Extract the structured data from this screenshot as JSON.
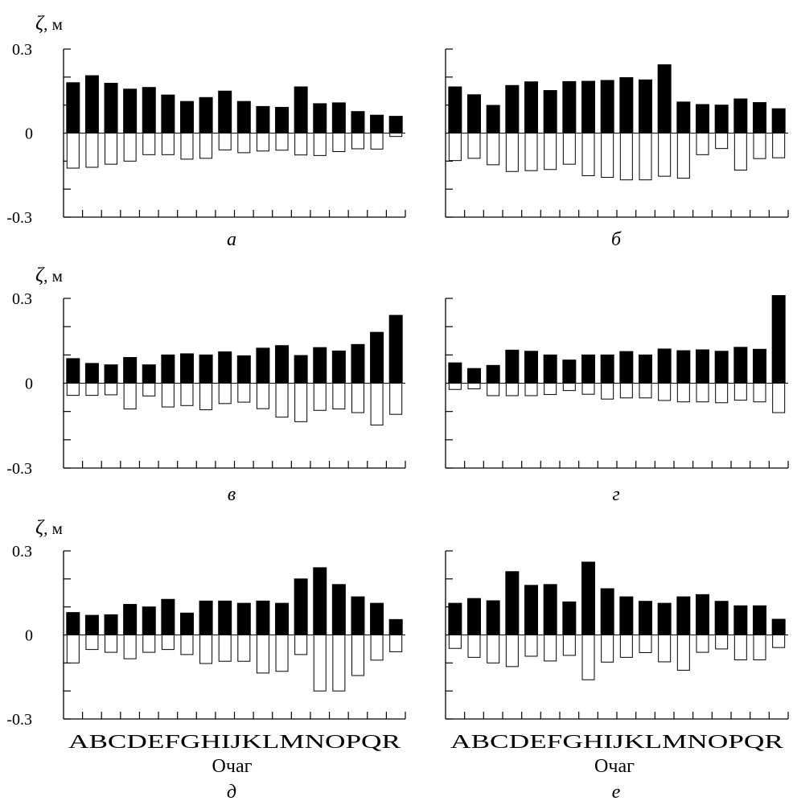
{
  "figure": {
    "y_label": "ζ, м",
    "x_label": "Очаг",
    "categories": [
      "A",
      "B",
      "C",
      "D",
      "E",
      "F",
      "G",
      "H",
      "I",
      "J",
      "K",
      "L",
      "M",
      "N",
      "O",
      "P",
      "Q",
      "R"
    ],
    "x_axis_text": [
      "A",
      "B",
      "C",
      "D",
      "E",
      "F",
      "G",
      "H",
      "I",
      "J",
      "K",
      "L",
      "M",
      "N",
      "O",
      "P",
      "Q",
      "R"
    ],
    "colors": {
      "max_bar": "#000000",
      "min_bar": "#ffffff",
      "outline": "#000000"
    }
  },
  "chart_data": [
    {
      "type": "bar",
      "panel": "а",
      "ylabel": "ζ, м",
      "xlabel": "",
      "ylim": [
        -0.3,
        0.3
      ],
      "yticks": [
        "0.3",
        "0",
        "-0.3"
      ],
      "categories": [
        "A",
        "B",
        "C",
        "D",
        "E",
        "F",
        "G",
        "H",
        "I",
        "J",
        "K",
        "L",
        "M",
        "N",
        "O",
        "P",
        "Q",
        "R"
      ],
      "series": [
        {
          "values": [
            0.18,
            0.205,
            0.178,
            0.157,
            0.163,
            0.136,
            0.113,
            0.127,
            0.15,
            0.113,
            0.095,
            0.092,
            0.165,
            0.105,
            0.108,
            0.077,
            0.064,
            0.06
          ]
        },
        {
          "values": [
            -0.125,
            -0.122,
            -0.111,
            -0.1,
            -0.077,
            -0.077,
            -0.093,
            -0.09,
            -0.06,
            -0.07,
            -0.064,
            -0.061,
            -0.078,
            -0.08,
            -0.066,
            -0.056,
            -0.057,
            -0.012
          ]
        }
      ]
    },
    {
      "type": "bar",
      "panel": "б",
      "ylabel": "",
      "xlabel": "",
      "ylim": [
        -0.3,
        0.3
      ],
      "yticks": [],
      "categories": [
        "A",
        "B",
        "C",
        "D",
        "E",
        "F",
        "G",
        "H",
        "I",
        "J",
        "K",
        "L",
        "M",
        "N",
        "O",
        "P",
        "Q",
        "R"
      ],
      "series": [
        {
          "values": [
            0.165,
            0.137,
            0.099,
            0.17,
            0.183,
            0.152,
            0.184,
            0.185,
            0.188,
            0.198,
            0.19,
            0.244,
            0.111,
            0.102,
            0.1,
            0.122,
            0.109,
            0.087
          ]
        },
        {
          "values": [
            -0.098,
            -0.09,
            -0.113,
            -0.137,
            -0.134,
            -0.13,
            -0.111,
            -0.152,
            -0.158,
            -0.167,
            -0.167,
            -0.154,
            -0.161,
            -0.077,
            -0.055,
            -0.132,
            -0.091,
            -0.088
          ]
        }
      ]
    },
    {
      "type": "bar",
      "panel": "в",
      "ylabel": "ζ, м",
      "xlabel": "",
      "ylim": [
        -0.3,
        0.3
      ],
      "yticks": [
        "0.3",
        "0",
        "-0.3"
      ],
      "categories": [
        "A",
        "B",
        "C",
        "D",
        "E",
        "F",
        "G",
        "H",
        "I",
        "J",
        "K",
        "L",
        "M",
        "N",
        "O",
        "P",
        "Q",
        "R"
      ],
      "series": [
        {
          "values": [
            0.087,
            0.07,
            0.065,
            0.091,
            0.065,
            0.1,
            0.104,
            0.1,
            0.111,
            0.097,
            0.124,
            0.133,
            0.098,
            0.126,
            0.114,
            0.137,
            0.18,
            0.24
          ]
        },
        {
          "values": [
            -0.043,
            -0.043,
            -0.041,
            -0.091,
            -0.045,
            -0.084,
            -0.079,
            -0.094,
            -0.072,
            -0.067,
            -0.09,
            -0.12,
            -0.136,
            -0.096,
            -0.091,
            -0.104,
            -0.148,
            -0.11
          ]
        }
      ]
    },
    {
      "type": "bar",
      "panel": "г",
      "ylabel": "",
      "xlabel": "",
      "ylim": [
        -0.3,
        0.3
      ],
      "yticks": [],
      "categories": [
        "A",
        "B",
        "C",
        "D",
        "E",
        "F",
        "G",
        "H",
        "I",
        "J",
        "K",
        "L",
        "M",
        "N",
        "O",
        "P",
        "Q",
        "R"
      ],
      "series": [
        {
          "values": [
            0.072,
            0.052,
            0.063,
            0.117,
            0.113,
            0.1,
            0.082,
            0.1,
            0.1,
            0.112,
            0.1,
            0.121,
            0.115,
            0.118,
            0.113,
            0.127,
            0.12,
            0.31
          ]
        },
        {
          "values": [
            -0.022,
            -0.02,
            -0.044,
            -0.044,
            -0.044,
            -0.04,
            -0.026,
            -0.039,
            -0.056,
            -0.052,
            -0.052,
            -0.061,
            -0.066,
            -0.066,
            -0.069,
            -0.06,
            -0.066,
            -0.104
          ]
        }
      ]
    },
    {
      "type": "bar",
      "panel": "д",
      "ylabel": "ζ, м",
      "xlabel": "Очаг",
      "ylim": [
        -0.3,
        0.3
      ],
      "yticks": [
        "0.3",
        "0",
        "-0.3"
      ],
      "categories": [
        "A",
        "B",
        "C",
        "D",
        "E",
        "F",
        "G",
        "H",
        "I",
        "J",
        "K",
        "L",
        "M",
        "N",
        "O",
        "P",
        "Q",
        "R"
      ],
      "series": [
        {
          "values": [
            0.08,
            0.07,
            0.072,
            0.109,
            0.1,
            0.127,
            0.078,
            0.121,
            0.121,
            0.113,
            0.121,
            0.113,
            0.2,
            0.24,
            0.18,
            0.136,
            0.113,
            0.055
          ]
        },
        {
          "values": [
            -0.1,
            -0.052,
            -0.062,
            -0.085,
            -0.062,
            -0.052,
            -0.07,
            -0.102,
            -0.094,
            -0.094,
            -0.136,
            -0.13,
            -0.07,
            -0.2,
            -0.2,
            -0.145,
            -0.09,
            -0.06
          ]
        }
      ]
    },
    {
      "type": "bar",
      "panel": "е",
      "ylabel": "",
      "xlabel": "Очаг",
      "ylim": [
        -0.3,
        0.3
      ],
      "yticks": [],
      "categories": [
        "A",
        "B",
        "C",
        "D",
        "E",
        "F",
        "G",
        "H",
        "I",
        "J",
        "K",
        "L",
        "M",
        "N",
        "O",
        "P",
        "Q",
        "R"
      ],
      "series": [
        {
          "values": [
            0.113,
            0.13,
            0.122,
            0.226,
            0.177,
            0.18,
            0.118,
            0.26,
            0.165,
            0.136,
            0.12,
            0.113,
            0.136,
            0.144,
            0.12,
            0.104,
            0.104,
            0.056
          ]
        },
        {
          "values": [
            -0.048,
            -0.08,
            -0.1,
            -0.113,
            -0.076,
            -0.093,
            -0.073,
            -0.16,
            -0.097,
            -0.08,
            -0.063,
            -0.096,
            -0.126,
            -0.062,
            -0.05,
            -0.089,
            -0.089,
            -0.045
          ]
        }
      ]
    }
  ]
}
